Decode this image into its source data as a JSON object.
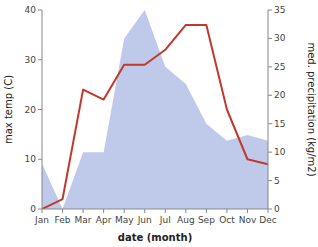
{
  "chart_data": {
    "type": "line",
    "xlabel": "date (month)",
    "ylabel": "max temp (C)",
    "y2label": "med. precipitation (kg/m2)",
    "categories": [
      "Jan",
      "Feb",
      "Mar",
      "Apr",
      "May",
      "Jun",
      "Jul",
      "Aug",
      "Sep",
      "Oct",
      "Nov",
      "Dec"
    ],
    "series": [
      {
        "type": "area",
        "axis": "y2",
        "color": "#b8c4e8",
        "values": [
          8,
          0,
          10,
          10,
          30,
          35,
          25,
          22,
          15,
          12,
          13,
          12
        ]
      },
      {
        "type": "line",
        "color": "#c0392b",
        "values": [
          0,
          2,
          24,
          22,
          29,
          29,
          32,
          37,
          37,
          20,
          10,
          9
        ]
      }
    ],
    "ylim": [
      0,
      40
    ],
    "yticks": [
      0,
      10,
      20,
      30,
      40
    ],
    "y2lim": [
      0,
      35
    ],
    "y2ticks": [
      0,
      5,
      10,
      15,
      20,
      25,
      30,
      35
    ],
    "grid": false
  }
}
